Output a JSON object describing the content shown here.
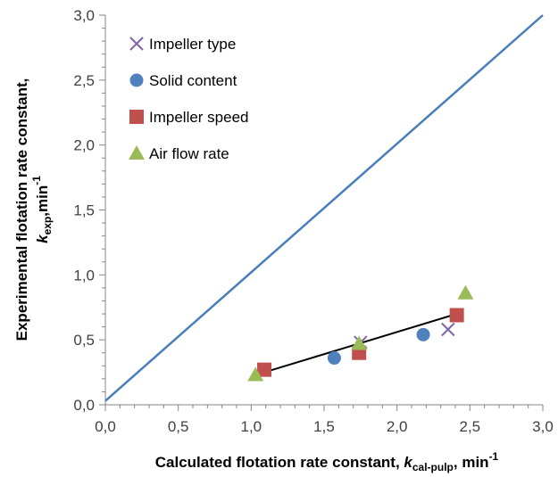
{
  "chart_data": {
    "type": "scatter",
    "xlim": [
      0,
      3
    ],
    "ylim": [
      0,
      3
    ],
    "xticks": [
      "0,0",
      "0,5",
      "1,0",
      "1,5",
      "2,0",
      "2,5",
      "3,0"
    ],
    "yticks": [
      "0,0",
      "0,5",
      "1,0",
      "1,5",
      "2,0",
      "2,5",
      "3,0"
    ],
    "xlabel": {
      "main": "Calculated flotation rate constant, ",
      "k": "k",
      "sub": "cal-pulp",
      "unit": ", min",
      "sup": "-1"
    },
    "ylabel": {
      "line1": "Experimental flotation rate constant,",
      "k": "k",
      "sub": "exp",
      "unit": ",min",
      "sup": "-1"
    },
    "grid": false,
    "legend_position": "top-left",
    "series": [
      {
        "name": "Impeller type",
        "marker": "x",
        "color": "#8064a2",
        "points": [
          [
            1.75,
            0.48
          ],
          [
            2.35,
            0.58
          ]
        ]
      },
      {
        "name": "Solid content",
        "marker": "circle",
        "color": "#4f81bd",
        "points": [
          [
            1.57,
            0.36
          ],
          [
            2.18,
            0.54
          ]
        ]
      },
      {
        "name": "Impeller speed",
        "marker": "square",
        "color": "#c0504d",
        "points": [
          [
            1.09,
            0.27
          ],
          [
            1.74,
            0.4
          ],
          [
            2.41,
            0.69
          ]
        ]
      },
      {
        "name": "Air flow rate",
        "marker": "triangle",
        "color": "#9bbb59",
        "points": [
          [
            1.03,
            0.23
          ],
          [
            1.74,
            0.47
          ],
          [
            2.47,
            0.86
          ]
        ]
      }
    ],
    "lines": [
      {
        "name": "",
        "color": "#4a7ebb",
        "points": [
          [
            0,
            0.03
          ],
          [
            3,
            3
          ]
        ]
      },
      {
        "name": "",
        "color": "#000000",
        "points": [
          [
            1.09,
            0.25
          ],
          [
            2.41,
            0.7
          ]
        ]
      }
    ]
  }
}
